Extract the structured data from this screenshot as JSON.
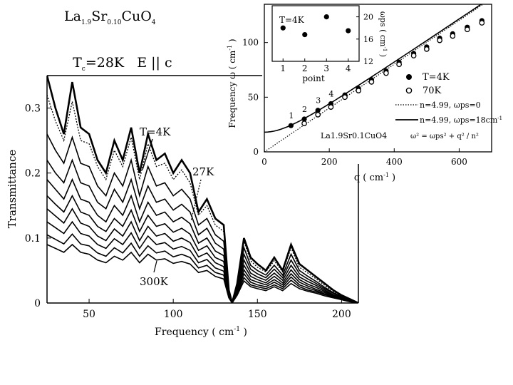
{
  "header": {
    "formula_parts": [
      "La",
      "1.9",
      "Sr",
      "0.10",
      "CuO",
      "4"
    ],
    "tc_parts": [
      "T",
      "c",
      "=28K   E || c"
    ]
  },
  "chart_data": [
    {
      "type": "line",
      "xlabel": "Frequency ( cm",
      "xlabel_sup": "-1",
      "xlabel_end": " )",
      "ylabel": "Transmittance",
      "xlim": [
        25,
        210
      ],
      "ylim": [
        0,
        0.35
      ],
      "xticks": [
        50,
        100,
        150,
        200
      ],
      "yticks": [
        0,
        0.1,
        0.2,
        0.3
      ],
      "ytick_labels": [
        "0",
        "0.1",
        "0.2",
        "0.3"
      ],
      "annotations": [
        "T=4K",
        "27K",
        "300K"
      ],
      "series": [
        {
          "x": [
            25,
            30,
            35,
            40,
            45,
            50,
            55,
            60,
            65,
            70,
            75,
            80,
            85,
            90,
            95,
            100,
            105,
            110,
            115,
            120,
            125,
            130,
            133,
            135,
            138,
            142,
            146,
            150,
            155,
            160,
            165,
            170,
            175,
            180,
            185,
            190,
            195,
            200,
            205,
            210
          ],
          "y": [
            0.35,
            0.3,
            0.26,
            0.34,
            0.27,
            0.26,
            0.22,
            0.2,
            0.25,
            0.22,
            0.27,
            0.2,
            0.26,
            0.22,
            0.23,
            0.2,
            0.22,
            0.2,
            0.14,
            0.16,
            0.13,
            0.12,
            0.02,
            0.0,
            0.03,
            0.1,
            0.07,
            0.06,
            0.05,
            0.07,
            0.05,
            0.09,
            0.06,
            0.05,
            0.04,
            0.03,
            0.02,
            0.012,
            0.006,
            0.0
          ]
        },
        {
          "x": [
            25,
            30,
            35,
            40,
            45,
            50,
            55,
            60,
            65,
            70,
            75,
            80,
            85,
            90,
            95,
            100,
            105,
            110,
            115,
            120,
            125,
            130,
            133,
            135,
            138,
            142,
            146,
            150,
            155,
            160,
            165,
            170,
            175,
            180,
            185,
            190,
            195,
            200,
            205,
            210
          ],
          "y": [
            0.32,
            0.28,
            0.25,
            0.31,
            0.25,
            0.245,
            0.21,
            0.19,
            0.235,
            0.21,
            0.255,
            0.19,
            0.245,
            0.21,
            0.215,
            0.19,
            0.205,
            0.185,
            0.135,
            0.15,
            0.12,
            0.11,
            0.02,
            0.0,
            0.03,
            0.095,
            0.065,
            0.055,
            0.048,
            0.065,
            0.048,
            0.085,
            0.055,
            0.046,
            0.037,
            0.027,
            0.018,
            0.011,
            0.005,
            0.0
          ]
        },
        {
          "x": [
            25,
            30,
            35,
            40,
            45,
            50,
            55,
            60,
            65,
            70,
            75,
            80,
            85,
            90,
            95,
            100,
            105,
            110,
            115,
            120,
            125,
            130,
            133,
            135,
            138,
            142,
            146,
            150,
            155,
            160,
            165,
            170,
            175,
            180,
            185,
            190,
            195,
            200,
            205,
            210
          ],
          "y": [
            0.26,
            0.235,
            0.215,
            0.255,
            0.215,
            0.21,
            0.18,
            0.165,
            0.2,
            0.18,
            0.22,
            0.165,
            0.21,
            0.18,
            0.185,
            0.165,
            0.175,
            0.16,
            0.12,
            0.13,
            0.105,
            0.095,
            0.018,
            0.0,
            0.028,
            0.085,
            0.058,
            0.05,
            0.043,
            0.058,
            0.043,
            0.075,
            0.05,
            0.041,
            0.033,
            0.024,
            0.016,
            0.01,
            0.005,
            0.0
          ]
        },
        {
          "x": [
            25,
            30,
            35,
            40,
            45,
            50,
            55,
            60,
            65,
            70,
            75,
            80,
            85,
            90,
            95,
            100,
            105,
            110,
            115,
            120,
            125,
            130,
            133,
            135,
            138,
            142,
            146,
            150,
            155,
            160,
            165,
            170,
            175,
            180,
            185,
            190,
            195,
            200,
            205,
            210
          ],
          "y": [
            0.22,
            0.2,
            0.185,
            0.22,
            0.185,
            0.18,
            0.155,
            0.145,
            0.175,
            0.155,
            0.19,
            0.145,
            0.18,
            0.155,
            0.16,
            0.143,
            0.152,
            0.14,
            0.105,
            0.115,
            0.092,
            0.083,
            0.016,
            0.0,
            0.025,
            0.075,
            0.052,
            0.045,
            0.039,
            0.052,
            0.039,
            0.066,
            0.045,
            0.037,
            0.03,
            0.022,
            0.015,
            0.009,
            0.004,
            0.0
          ]
        },
        {
          "x": [
            25,
            30,
            35,
            40,
            45,
            50,
            55,
            60,
            65,
            70,
            75,
            80,
            85,
            90,
            95,
            100,
            105,
            110,
            115,
            120,
            125,
            130,
            133,
            135,
            138,
            142,
            146,
            150,
            155,
            160,
            165,
            170,
            175,
            180,
            185,
            190,
            195,
            200,
            205,
            210
          ],
          "y": [
            0.19,
            0.175,
            0.16,
            0.19,
            0.16,
            0.155,
            0.135,
            0.125,
            0.15,
            0.135,
            0.165,
            0.125,
            0.155,
            0.135,
            0.14,
            0.125,
            0.132,
            0.122,
            0.092,
            0.1,
            0.08,
            0.073,
            0.015,
            0.0,
            0.022,
            0.066,
            0.046,
            0.04,
            0.035,
            0.046,
            0.035,
            0.058,
            0.04,
            0.033,
            0.027,
            0.02,
            0.013,
            0.008,
            0.004,
            0.0
          ]
        },
        {
          "x": [
            25,
            30,
            35,
            40,
            45,
            50,
            55,
            60,
            65,
            70,
            75,
            80,
            85,
            90,
            95,
            100,
            105,
            110,
            115,
            120,
            125,
            130,
            133,
            135,
            138,
            142,
            146,
            150,
            155,
            160,
            165,
            170,
            175,
            180,
            185,
            190,
            195,
            200,
            205,
            210
          ],
          "y": [
            0.165,
            0.152,
            0.14,
            0.165,
            0.14,
            0.135,
            0.118,
            0.11,
            0.13,
            0.118,
            0.143,
            0.11,
            0.135,
            0.118,
            0.122,
            0.109,
            0.115,
            0.106,
            0.081,
            0.088,
            0.07,
            0.064,
            0.013,
            0.0,
            0.02,
            0.058,
            0.041,
            0.036,
            0.031,
            0.041,
            0.031,
            0.051,
            0.036,
            0.029,
            0.024,
            0.018,
            0.012,
            0.007,
            0.003,
            0.0
          ]
        },
        {
          "x": [
            25,
            30,
            35,
            40,
            45,
            50,
            55,
            60,
            65,
            70,
            75,
            80,
            85,
            90,
            95,
            100,
            105,
            110,
            115,
            120,
            125,
            130,
            133,
            135,
            138,
            142,
            146,
            150,
            155,
            160,
            165,
            170,
            175,
            180,
            185,
            190,
            195,
            200,
            205,
            210
          ],
          "y": [
            0.145,
            0.134,
            0.123,
            0.145,
            0.123,
            0.118,
            0.103,
            0.096,
            0.114,
            0.103,
            0.125,
            0.096,
            0.118,
            0.103,
            0.107,
            0.095,
            0.1,
            0.093,
            0.071,
            0.077,
            0.062,
            0.056,
            0.011,
            0.0,
            0.018,
            0.051,
            0.036,
            0.032,
            0.028,
            0.036,
            0.028,
            0.045,
            0.032,
            0.026,
            0.021,
            0.016,
            0.011,
            0.006,
            0.003,
            0.0
          ]
        },
        {
          "x": [
            25,
            30,
            35,
            40,
            45,
            50,
            55,
            60,
            65,
            70,
            75,
            80,
            85,
            90,
            95,
            100,
            105,
            110,
            115,
            120,
            125,
            130,
            133,
            135,
            138,
            142,
            146,
            150,
            155,
            160,
            165,
            170,
            175,
            180,
            185,
            190,
            195,
            200,
            205,
            210
          ],
          "y": [
            0.125,
            0.116,
            0.107,
            0.125,
            0.107,
            0.103,
            0.09,
            0.084,
            0.099,
            0.09,
            0.108,
            0.084,
            0.103,
            0.09,
            0.093,
            0.083,
            0.087,
            0.081,
            0.062,
            0.067,
            0.054,
            0.049,
            0.01,
            0.0,
            0.016,
            0.045,
            0.032,
            0.028,
            0.025,
            0.032,
            0.025,
            0.04,
            0.028,
            0.023,
            0.019,
            0.014,
            0.01,
            0.006,
            0.003,
            0.0
          ]
        },
        {
          "x": [
            25,
            30,
            35,
            40,
            45,
            50,
            55,
            60,
            65,
            70,
            75,
            80,
            85,
            90,
            95,
            100,
            105,
            110,
            115,
            120,
            125,
            130,
            133,
            135,
            138,
            142,
            146,
            150,
            155,
            160,
            165,
            170,
            175,
            180,
            185,
            190,
            195,
            200,
            205,
            210
          ],
          "y": [
            0.105,
            0.098,
            0.091,
            0.106,
            0.091,
            0.088,
            0.077,
            0.072,
            0.085,
            0.077,
            0.092,
            0.072,
            0.088,
            0.077,
            0.08,
            0.071,
            0.075,
            0.07,
            0.054,
            0.058,
            0.047,
            0.043,
            0.009,
            0.0,
            0.014,
            0.039,
            0.028,
            0.025,
            0.022,
            0.028,
            0.022,
            0.035,
            0.025,
            0.02,
            0.017,
            0.013,
            0.009,
            0.005,
            0.002,
            0.0
          ]
        },
        {
          "x": [
            25,
            30,
            35,
            40,
            45,
            50,
            55,
            60,
            65,
            70,
            75,
            80,
            85,
            90,
            95,
            100,
            105,
            110,
            115,
            120,
            125,
            130,
            133,
            135,
            138,
            142,
            146,
            150,
            155,
            160,
            165,
            170,
            175,
            180,
            185,
            190,
            195,
            200,
            205,
            210
          ],
          "y": [
            0.09,
            0.084,
            0.078,
            0.09,
            0.078,
            0.075,
            0.066,
            0.062,
            0.072,
            0.066,
            0.078,
            0.062,
            0.075,
            0.066,
            0.068,
            0.061,
            0.064,
            0.06,
            0.047,
            0.05,
            0.041,
            0.037,
            0.008,
            0.0,
            0.012,
            0.034,
            0.025,
            0.022,
            0.019,
            0.025,
            0.019,
            0.03,
            0.022,
            0.018,
            0.015,
            0.011,
            0.008,
            0.005,
            0.002,
            0.0
          ]
        }
      ]
    },
    {
      "type": "scatter",
      "xlabel": "q ( cm",
      "xlabel_sup": "-1",
      "xlabel_end": " )",
      "ylabel": "Frequency ω ( cm",
      "ylabel_sup": "-1",
      "ylabel_end": " )",
      "xlim": [
        0,
        700
      ],
      "ylim": [
        0,
        135
      ],
      "xticks": [
        0,
        200,
        400,
        600
      ],
      "yticks": [
        0,
        50,
        100
      ],
      "legend": {
        "position": "right",
        "entries": [
          "T=4K",
          "70K",
          "n=4.99, ωps=0",
          "n=4.99, ωps=18cm"
        ],
        "entries_sup": [
          "",
          "",
          "",
          "-1"
        ]
      },
      "annotation_formula": "La1.9Sr0.1CuO4",
      "annotation_dispersion": "ω² = ωps² + q² / n²",
      "point_labels": [
        "1",
        "2",
        "3",
        "4"
      ],
      "series": [
        {
          "name": "T=4K",
          "marker": "filled",
          "x": [
            82,
            123,
            165,
            205,
            248,
            290,
            330,
            375,
            415,
            460,
            500,
            540,
            580,
            625,
            670
          ],
          "y": [
            24,
            30,
            38,
            44,
            52,
            58,
            66,
            74,
            82,
            90,
            96,
            104,
            108,
            114,
            120
          ]
        },
        {
          "name": "70K",
          "marker": "open",
          "x": [
            123,
            165,
            205,
            248,
            290,
            330,
            375,
            415,
            460,
            500,
            540,
            580,
            625,
            670
          ],
          "y": [
            26,
            34,
            41,
            50,
            56,
            64,
            72,
            80,
            88,
            94,
            102,
            106,
            112,
            118
          ]
        },
        {
          "name": "n=4.99, ωps=0",
          "style": "dotted",
          "n": 4.99,
          "wps": 0
        },
        {
          "name": "n=4.99, ωps=18cm-1",
          "style": "solid",
          "n": 4.99,
          "wps": 18
        }
      ]
    },
    {
      "type": "scatter",
      "title": "T=4K",
      "xlabel": "point",
      "ylabel": "ωps ( cm",
      "ylabel_sup": "-1",
      "ylabel_end": " )",
      "xlim": [
        0.5,
        4.5
      ],
      "ylim": [
        12,
        22
      ],
      "xticks": [
        1,
        2,
        3,
        4
      ],
      "yticks": [
        12,
        16,
        20
      ],
      "series": [
        {
          "x": [
            1,
            2,
            3,
            4
          ],
          "y": [
            18.0,
            16.8,
            20.0,
            17.5
          ]
        }
      ]
    }
  ]
}
